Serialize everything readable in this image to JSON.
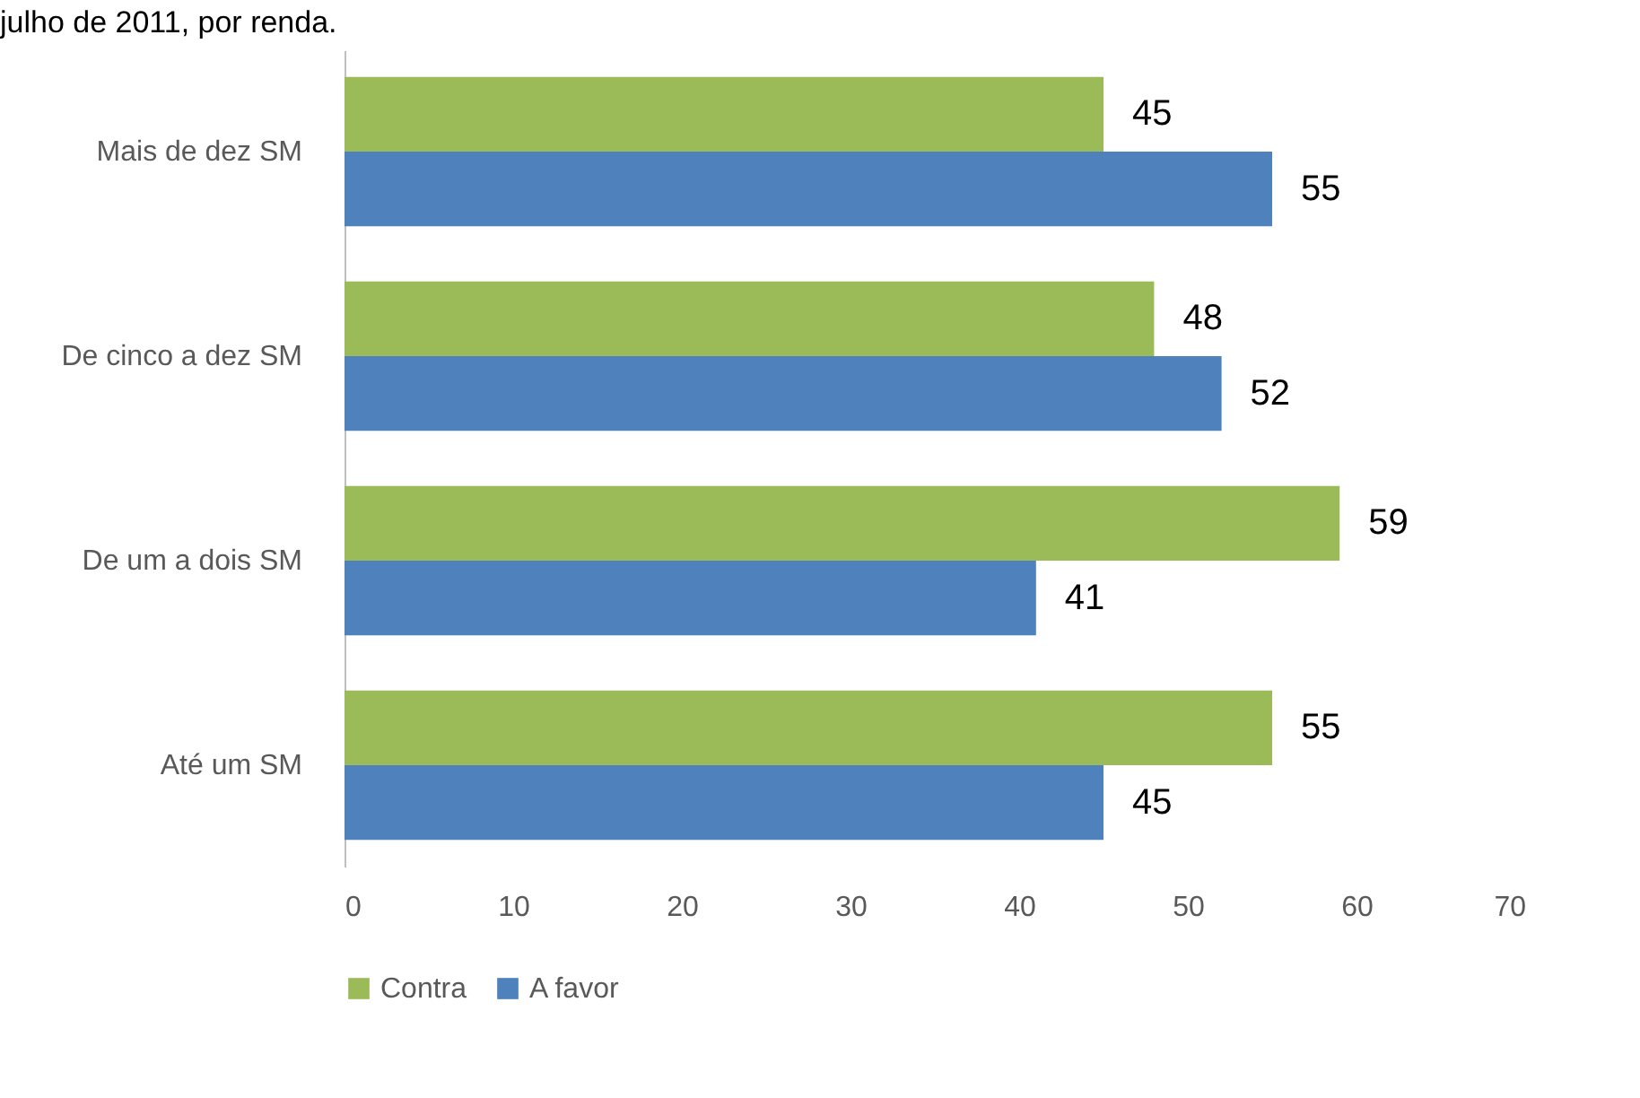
{
  "chart_data": {
    "type": "bar",
    "orientation": "horizontal",
    "title": "julho de 2011, por renda.",
    "categories": [
      "Mais de dez SM",
      "De cinco a dez SM",
      "De um a dois SM",
      "Até um SM"
    ],
    "series": [
      {
        "name": "Contra",
        "color": "#9bbb59",
        "values": [
          45,
          48,
          59,
          55
        ]
      },
      {
        "name": "A favor",
        "color": "#4f81bd",
        "values": [
          55,
          52,
          41,
          45
        ]
      }
    ],
    "xlim": [
      0,
      70
    ],
    "xticks": [
      0,
      10,
      20,
      30,
      40,
      50,
      60,
      70
    ],
    "grid": false,
    "legend": "bottom",
    "data_labels": true
  }
}
